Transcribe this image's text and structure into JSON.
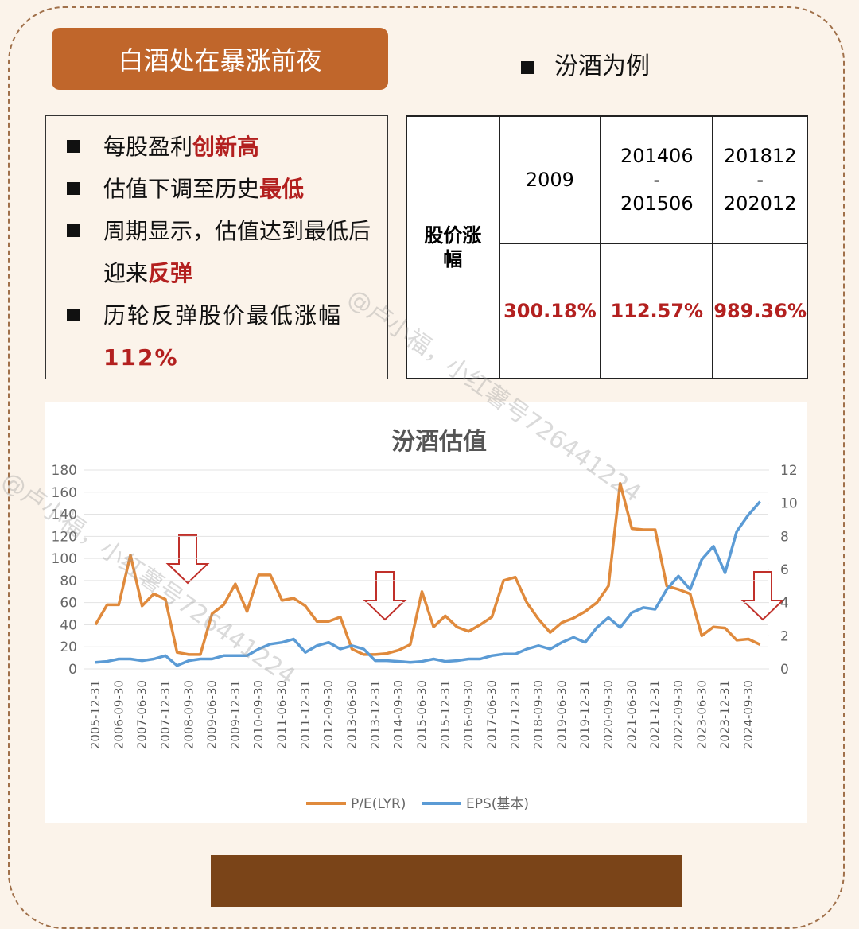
{
  "header": {
    "title": "白酒处在暴涨前夜",
    "example": "汾酒为例"
  },
  "points": [
    {
      "text": "每股盈利",
      "em": "创新高"
    },
    {
      "text": "估值下调至历史",
      "em": "最低"
    },
    {
      "text": "周期显示，估值达到最低后迎来",
      "em": "反弹"
    },
    {
      "text": "历轮反弹股价最低涨幅",
      "em": "112%"
    }
  ],
  "table": {
    "row_label": "股价涨幅",
    "columns": [
      [
        "2009"
      ],
      [
        "201406",
        "-",
        "201506"
      ],
      [
        "201812",
        "-",
        "202012"
      ]
    ],
    "values": [
      "300.18%",
      "112.57%",
      "989.36%"
    ]
  },
  "watermark": "@卢小福，小红薯号726441224",
  "chart_data": {
    "type": "line",
    "title": "汾酒估值",
    "categories": [
      "2005-12-31",
      null,
      "2006-09-30",
      null,
      "2007-06-30",
      null,
      "2007-12-31",
      null,
      "2008-09-30",
      null,
      "2009-06-30",
      null,
      "2009-12-31",
      null,
      "2010-09-30",
      null,
      "2011-06-30",
      null,
      "2011-12-31",
      null,
      "2012-09-30",
      null,
      "2013-06-30",
      null,
      "2013-12-31",
      null,
      "2014-09-30",
      null,
      "2015-06-30",
      null,
      "2015-12-31",
      null,
      "2016-09-30",
      null,
      "2017-06-30",
      null,
      "2017-12-31",
      null,
      "2018-09-30",
      null,
      "2019-06-30",
      null,
      "2019-12-31",
      null,
      "2020-09-30",
      null,
      "2021-06-30",
      null,
      "2021-12-31",
      null,
      "2022-09-30",
      null,
      "2023-06-30",
      null,
      "2023-12-31",
      null,
      "2024-09-30",
      null
    ],
    "series": [
      {
        "name": "P/E(LYR)",
        "color": "#e08a3c",
        "values": [
          40,
          58,
          58,
          103,
          57,
          68,
          63,
          15,
          13,
          13,
          50,
          58,
          77,
          52,
          85,
          85,
          62,
          64,
          57,
          43,
          43,
          47,
          18,
          13,
          13,
          14,
          17,
          22,
          70,
          38,
          48,
          38,
          34,
          40,
          47,
          80,
          83,
          60,
          45,
          33,
          42,
          46,
          52,
          60,
          75,
          168,
          127,
          126,
          126,
          75,
          72,
          68,
          30,
          38,
          37,
          26,
          27,
          22
        ]
      },
      {
        "name": "EPS(基本)",
        "color": "#5b9bd5",
        "axis": "y2",
        "values": [
          0.4,
          0.45,
          0.6,
          0.6,
          0.5,
          0.6,
          0.8,
          0.2,
          0.5,
          0.6,
          0.6,
          0.8,
          0.8,
          0.8,
          1.2,
          1.5,
          1.6,
          1.8,
          1.0,
          1.4,
          1.6,
          1.2,
          1.4,
          1.2,
          0.5,
          0.5,
          0.45,
          0.4,
          0.45,
          0.6,
          0.45,
          0.5,
          0.6,
          0.6,
          0.8,
          0.9,
          0.9,
          1.2,
          1.4,
          1.2,
          1.6,
          1.9,
          1.6,
          2.5,
          3.1,
          2.5,
          3.4,
          3.7,
          3.6,
          4.8,
          5.6,
          4.8,
          6.6,
          7.4,
          5.8,
          8.3,
          9.3,
          10.1
        ]
      }
    ],
    "ylim": [
      0,
      180
    ],
    "yticks": [
      0,
      20,
      40,
      60,
      80,
      100,
      120,
      140,
      160,
      180
    ],
    "y2lim": [
      0,
      12
    ],
    "y2ticks": [
      0,
      2,
      4,
      6,
      8,
      10,
      12
    ],
    "grid": true,
    "legend": "bottom"
  }
}
